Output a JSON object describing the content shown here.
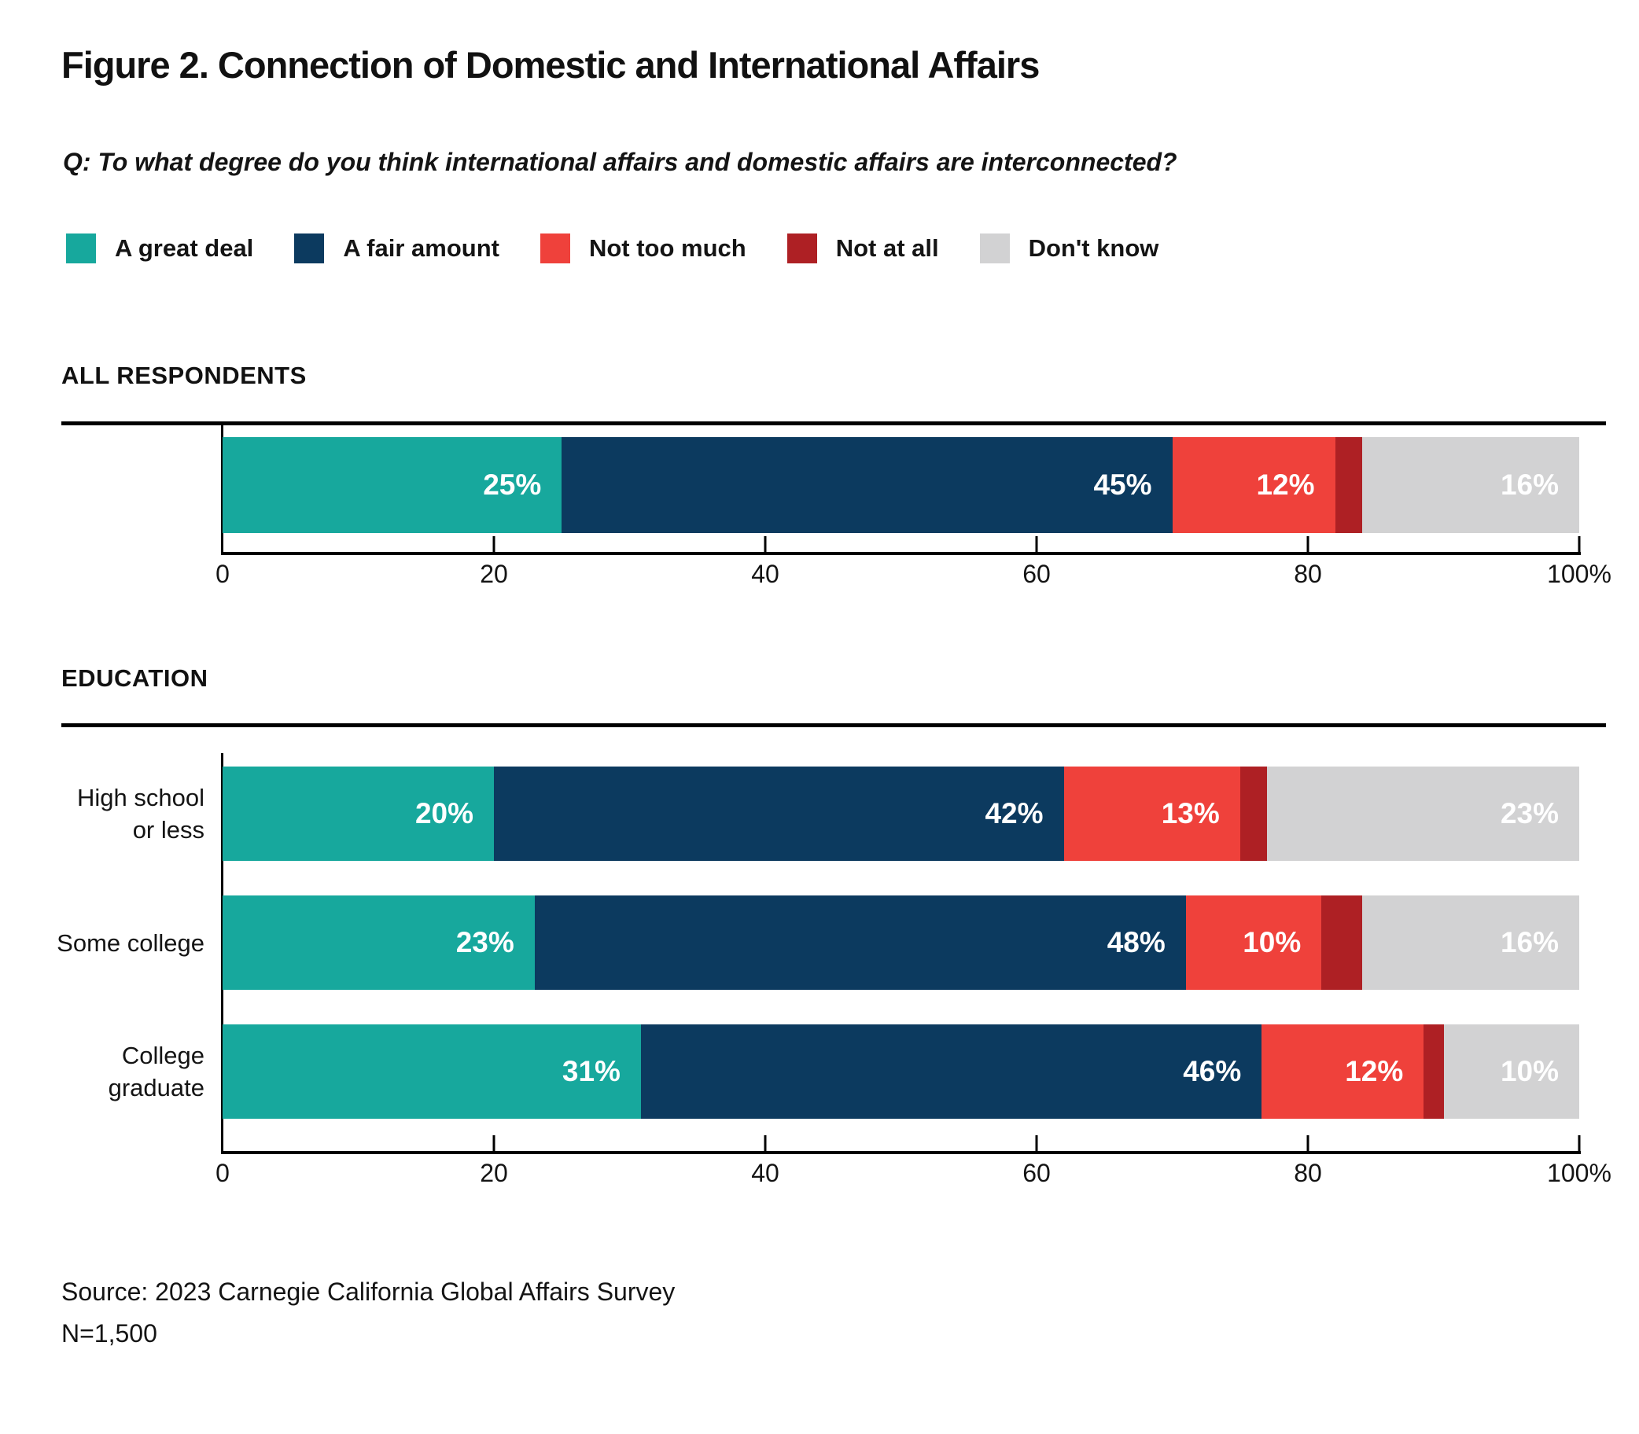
{
  "title": "Figure 2. Connection of Domestic and International Affairs",
  "question": "Q: To what degree do you think international affairs and domestic affairs are interconnected?",
  "legend": {
    "items": [
      {
        "label": "A great deal",
        "color": "#17A89D"
      },
      {
        "label": "A fair amount",
        "color": "#0C3A5F"
      },
      {
        "label": "Not too much",
        "color": "#EF413B"
      },
      {
        "label": "Not at all",
        "color": "#AE2024"
      },
      {
        "label": "Don't know",
        "color": "#D2D2D3"
      }
    ]
  },
  "sections": {
    "all_respondents": "ALL RESPONDENTS",
    "education": "EDUCATION"
  },
  "colors": {
    "a_great_deal": "#17A89D",
    "a_fair_amount": "#0C3A5F",
    "not_too_much": "#EF413B",
    "not_at_all": "#AE2024",
    "dont_know": "#D2D2D3",
    "axis": "#000000",
    "text": "#141414",
    "bar_value_label": "#FFFFFF"
  },
  "chart_data": [
    {
      "type": "bar",
      "variant": "horizontal-stacked",
      "section_title": "ALL RESPONDENTS",
      "categories": [
        "All respondents"
      ],
      "category_label_lines": [
        []
      ],
      "series": [
        {
          "name": "A great deal",
          "color": "#17A89D",
          "values": [
            25
          ]
        },
        {
          "name": "A fair amount",
          "color": "#0C3A5F",
          "values": [
            45
          ]
        },
        {
          "name": "Not too much",
          "color": "#EF413B",
          "values": [
            12
          ]
        },
        {
          "name": "Not at all",
          "color": "#AE2024",
          "values": [
            2
          ]
        },
        {
          "name": "Don't know",
          "color": "#D2D2D3",
          "values": [
            16
          ]
        }
      ],
      "xlim": [
        0,
        100
      ],
      "x_tick_labels": [
        "0",
        "20",
        "40",
        "60",
        "80",
        "100%"
      ],
      "data_label_min": 10,
      "data_label_format": "{value}%",
      "grid": false,
      "legend_position": "top"
    },
    {
      "type": "bar",
      "variant": "horizontal-stacked",
      "section_title": "EDUCATION",
      "categories": [
        "High school or less",
        "Some college",
        "College graduate"
      ],
      "category_label_lines": [
        [
          "High school",
          "or less"
        ],
        [
          "Some college"
        ],
        [
          "College",
          "graduate"
        ]
      ],
      "series": [
        {
          "name": "A great deal",
          "color": "#17A89D",
          "values": [
            20,
            23,
            31
          ]
        },
        {
          "name": "A fair amount",
          "color": "#0C3A5F",
          "values": [
            42,
            48,
            46
          ]
        },
        {
          "name": "Not too much",
          "color": "#EF413B",
          "values": [
            13,
            10,
            12
          ]
        },
        {
          "name": "Not at all",
          "color": "#AE2024",
          "values": [
            2,
            3,
            1
          ]
        },
        {
          "name": "Don't know",
          "color": "#D2D2D3",
          "values": [
            23,
            16,
            10
          ]
        }
      ],
      "xlim": [
        0,
        100
      ],
      "x_tick_labels": [
        "0",
        "20",
        "40",
        "60",
        "80",
        "100%"
      ],
      "data_label_min": 10,
      "data_label_format": "{value}%",
      "grid": false,
      "legend_position": "top"
    }
  ],
  "source": {
    "line1": "Source: 2023 Carnegie California Global Affairs Survey",
    "line2": "N=1,500"
  }
}
